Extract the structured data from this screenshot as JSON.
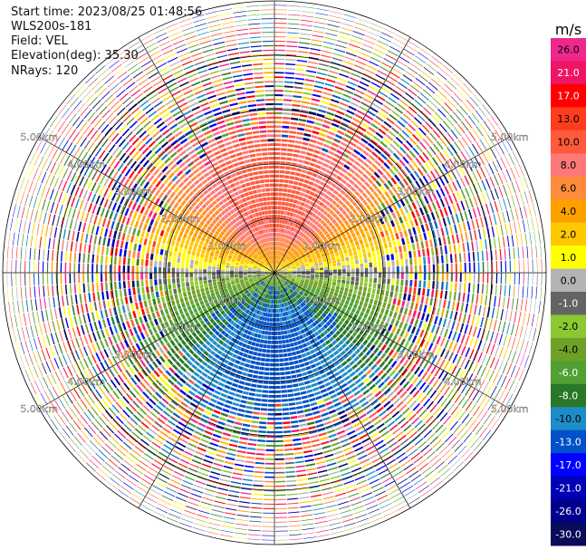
{
  "info": {
    "start_time": "Start time: 2023/08/25 01:48:56",
    "instrument": "WLS200s-181",
    "field": "Field: VEL",
    "elevation": "Elevation(deg): 35.30",
    "nrays": "NRays: 120"
  },
  "chart_data": {
    "type": "heatmap",
    "projection": "polar-ppi",
    "field": "VEL",
    "nrays": 120,
    "range_rings": [
      1,
      2,
      3,
      4,
      5
    ],
    "range_unit": "km",
    "ring_labels": [
      "1.00km",
      "2.00km",
      "3.00km",
      "4.00km",
      "5.00km"
    ],
    "spokes_deg": [
      0,
      30,
      60,
      90,
      120,
      150,
      180,
      210,
      240,
      270,
      300,
      330
    ],
    "max_range_km": 5.0,
    "colorbar": {
      "title": "m/s",
      "ticks": [
        "26.0",
        "21.0",
        "17.0",
        "13.0",
        "10.0",
        "8.0",
        "6.0",
        "4.0",
        "2.0",
        "1.0",
        "0.0",
        "-1.0",
        "-2.0",
        "-4.0",
        "-6.0",
        "-8.0",
        "-10.0",
        "-13.0",
        "-17.0",
        "-21.0",
        "-26.0",
        "-30.0"
      ],
      "colors": [
        "#f0288c",
        "#f01464",
        "#ff0000",
        "#ff3c1e",
        "#ff5a3c",
        "#ff7878",
        "#ff8c3c",
        "#ffa000",
        "#ffc800",
        "#ffff00",
        "#b4b4b4",
        "#646464",
        "#8cc832",
        "#6ea028",
        "#50a032",
        "#287828",
        "#1e8cc8",
        "#0050c8",
        "#0000ff",
        "#0000b4",
        "#00008c",
        "#0a0a5a"
      ]
    },
    "pattern": {
      "north_half": "approaching / receding band: orange-salmon 8-13 m/s near 1-2 km, yellow 1-6 m/s near center",
      "south_half": "green -1 to -8 m/s, blue -10 m/s patches near south center",
      "east_west": "grey 0 m/s band along the horizontal axis",
      "outer": "noise (random colors) beyond ~2.5-3 km"
    }
  }
}
